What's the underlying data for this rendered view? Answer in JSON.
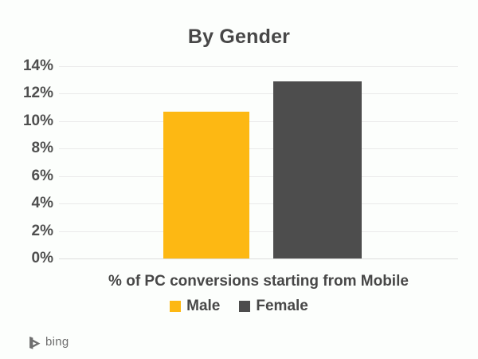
{
  "chart": {
    "title": "By Gender",
    "x_axis_title": "% of PC conversions starting from Mobile"
  },
  "chart_data": {
    "type": "bar",
    "title": "By Gender",
    "xlabel": "% of PC conversions starting from Mobile",
    "ylabel": "",
    "categories": [
      "Male",
      "Female"
    ],
    "values": [
      10.7,
      12.9
    ],
    "colors": [
      "#FDB813",
      "#4D4D4D"
    ],
    "ylim": [
      0,
      14
    ],
    "yticks": [
      "0%",
      "2%",
      "4%",
      "6%",
      "8%",
      "10%",
      "12%",
      "14%"
    ],
    "grid": true,
    "legend_position": "bottom"
  },
  "legend": {
    "items": [
      {
        "label": "Male",
        "color": "#FDB813"
      },
      {
        "label": "Female",
        "color": "#4D4D4D"
      }
    ]
  },
  "branding": {
    "logo_text": "bing",
    "logo_color": "#6E6E6E"
  }
}
